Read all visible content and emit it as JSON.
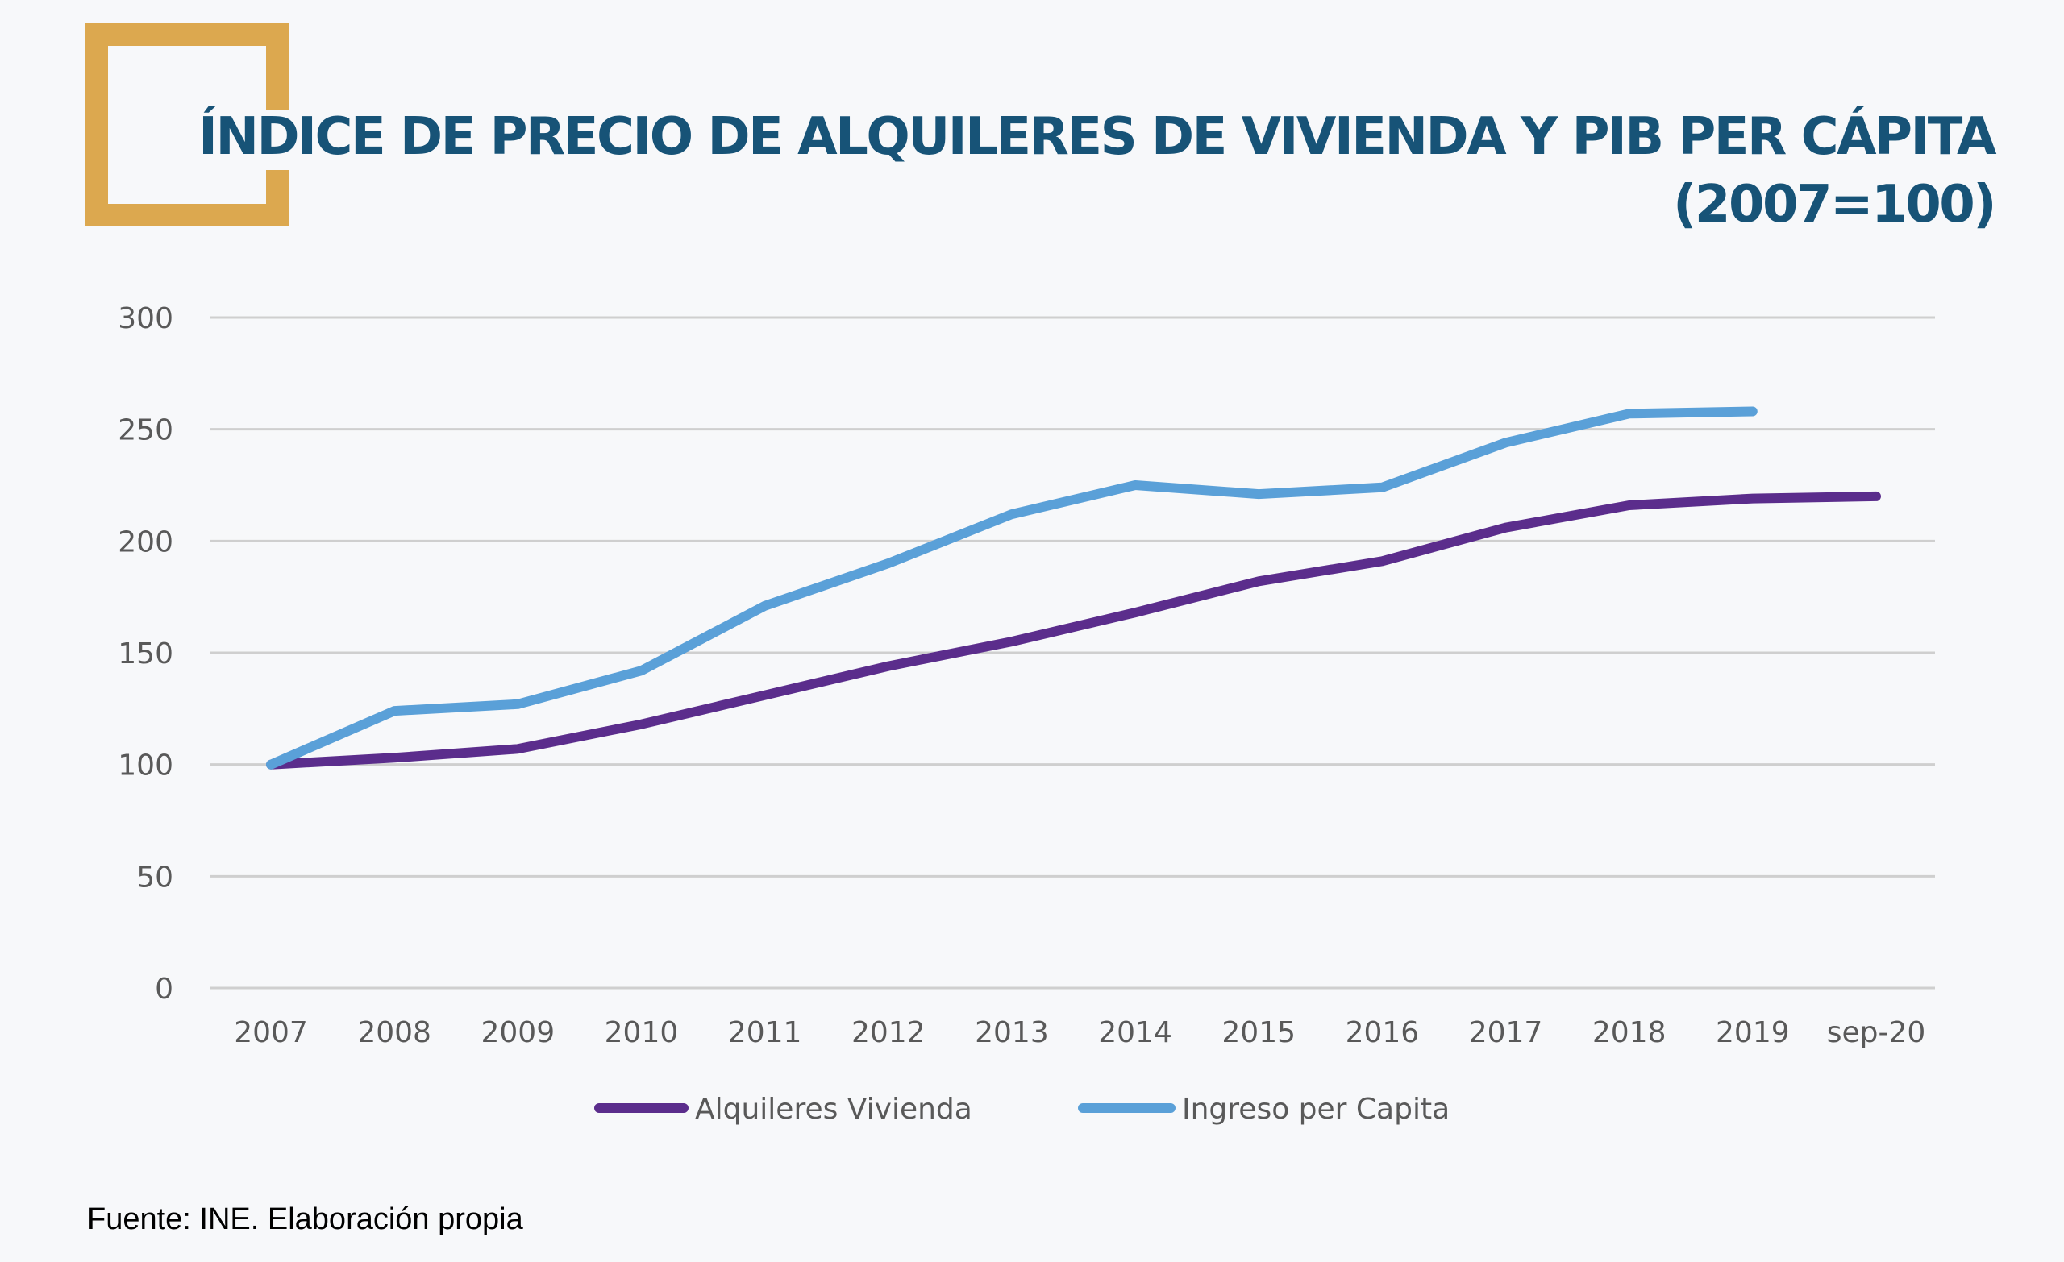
{
  "header": {
    "title_line1": "ÍNDICE DE PRECIO DE ALQUILERES DE VIVIENDA Y PIB PER CÁPITA",
    "title_line2": "(2007=100)"
  },
  "colors": {
    "accent_bracket": "#dca84f",
    "title": "#175377",
    "alquileres": "#5b2d8c",
    "ingreso": "#5aa0d8",
    "grid": "#cfcfcf",
    "axis_text": "#595959"
  },
  "chart_data": {
    "type": "line",
    "title": "ÍNDICE DE PRECIO DE ALQUILERES DE VIVIENDA Y PIB PER CÁPITA (2007=100)",
    "xlabel": "",
    "ylabel": "",
    "categories": [
      "2007",
      "2008",
      "2009",
      "2010",
      "2011",
      "2012",
      "2013",
      "2014",
      "2015",
      "2016",
      "2017",
      "2018",
      "2019",
      "sep-20"
    ],
    "yticks": [
      0,
      50,
      100,
      150,
      200,
      250,
      300
    ],
    "ylim": [
      0,
      300
    ],
    "grid": true,
    "legend_position": "bottom",
    "series": [
      {
        "name": "Alquileres Vivienda",
        "color": "#5b2d8c",
        "values": [
          100,
          103,
          107,
          118,
          131,
          144,
          155,
          168,
          182,
          191,
          206,
          216,
          219,
          220
        ]
      },
      {
        "name": "Ingreso per Capita",
        "color": "#5aa0d8",
        "values": [
          100,
          124,
          127,
          142,
          171,
          190,
          212,
          225,
          221,
          224,
          244,
          257,
          258,
          null
        ]
      }
    ]
  },
  "footer": {
    "source": "Fuente: INE. Elaboración propia"
  }
}
